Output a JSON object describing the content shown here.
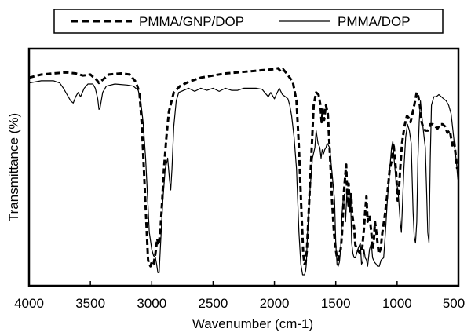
{
  "chart_data": {
    "type": "line",
    "xlabel": "Wavenumber (cm-1)",
    "ylabel": "Transmittance (%)",
    "xlim": [
      4000,
      500
    ],
    "x_reversed": true,
    "ylim": [
      0,
      100
    ],
    "y_ticks_shown": false,
    "grid": false,
    "legend_position": "top-center",
    "x_ticks": [
      4000,
      3500,
      3000,
      2500,
      2000,
      1500,
      1000,
      500
    ],
    "x_tick_labels": [
      "4000",
      "3500",
      "3000",
      "2500",
      "2000",
      "1500",
      "1000",
      "500"
    ],
    "series": [
      {
        "name": "PMMA/GNP/DOP",
        "style": "dashed",
        "color": "#000000",
        "points": [
          [
            4000,
            93
          ],
          [
            3900,
            94.5
          ],
          [
            3800,
            95
          ],
          [
            3700,
            95.5
          ],
          [
            3620,
            95
          ],
          [
            3560,
            94
          ],
          [
            3500,
            94.5
          ],
          [
            3450,
            92
          ],
          [
            3430,
            90.5
          ],
          [
            3400,
            92
          ],
          [
            3350,
            94.5
          ],
          [
            3250,
            95
          ],
          [
            3180,
            94.5
          ],
          [
            3130,
            91
          ],
          [
            3100,
            86
          ],
          [
            3080,
            70
          ],
          [
            3060,
            45
          ],
          [
            3040,
            20
          ],
          [
            3030,
            7
          ],
          [
            3020,
            5
          ],
          [
            3010,
            4
          ],
          [
            3000,
            6
          ],
          [
            2985,
            5
          ],
          [
            2970,
            10
          ],
          [
            2955,
            17
          ],
          [
            2945,
            14
          ],
          [
            2930,
            20
          ],
          [
            2915,
            35
          ],
          [
            2900,
            50
          ],
          [
            2880,
            65
          ],
          [
            2860,
            77
          ],
          [
            2820,
            86
          ],
          [
            2770,
            89
          ],
          [
            2700,
            91
          ],
          [
            2600,
            93
          ],
          [
            2500,
            94
          ],
          [
            2400,
            95
          ],
          [
            2300,
            95.5
          ],
          [
            2200,
            96
          ],
          [
            2100,
            96.5
          ],
          [
            2000,
            97
          ],
          [
            1970,
            97.5
          ],
          [
            1950,
            96
          ],
          [
            1930,
            97
          ],
          [
            1900,
            95
          ],
          [
            1850,
            91
          ],
          [
            1820,
            82
          ],
          [
            1800,
            60
          ],
          [
            1780,
            30
          ],
          [
            1765,
            10
          ],
          [
            1755,
            5
          ],
          [
            1745,
            6
          ],
          [
            1735,
            12
          ],
          [
            1720,
            30
          ],
          [
            1700,
            55
          ],
          [
            1680,
            80
          ],
          [
            1660,
            86
          ],
          [
            1640,
            85
          ],
          [
            1625,
            80
          ],
          [
            1615,
            72
          ],
          [
            1605,
            78
          ],
          [
            1595,
            73
          ],
          [
            1580,
            80
          ],
          [
            1565,
            76
          ],
          [
            1550,
            60
          ],
          [
            1530,
            35
          ],
          [
            1515,
            20
          ],
          [
            1500,
            12
          ],
          [
            1490,
            8
          ],
          [
            1480,
            7
          ],
          [
            1470,
            10
          ],
          [
            1460,
            12
          ],
          [
            1450,
            18
          ],
          [
            1440,
            30
          ],
          [
            1435,
            38
          ],
          [
            1425,
            45
          ],
          [
            1415,
            52
          ],
          [
            1405,
            35
          ],
          [
            1395,
            43
          ],
          [
            1385,
            30
          ],
          [
            1375,
            38
          ],
          [
            1365,
            28
          ],
          [
            1350,
            22
          ],
          [
            1340,
            14
          ],
          [
            1325,
            12
          ],
          [
            1300,
            10
          ],
          [
            1285,
            12
          ],
          [
            1270,
            22
          ],
          [
            1260,
            30
          ],
          [
            1250,
            37
          ],
          [
            1240,
            25
          ],
          [
            1225,
            28
          ],
          [
            1210,
            20
          ],
          [
            1200,
            12
          ],
          [
            1190,
            16
          ],
          [
            1180,
            25
          ],
          [
            1165,
            18
          ],
          [
            1150,
            10
          ],
          [
            1135,
            12
          ],
          [
            1120,
            20
          ],
          [
            1100,
            28
          ],
          [
            1080,
            38
          ],
          [
            1060,
            50
          ],
          [
            1040,
            55
          ],
          [
            1030,
            62
          ],
          [
            1010,
            50
          ],
          [
            995,
            35
          ],
          [
            985,
            40
          ],
          [
            975,
            50
          ],
          [
            960,
            62
          ],
          [
            940,
            70
          ],
          [
            920,
            75
          ],
          [
            905,
            74
          ],
          [
            890,
            72
          ],
          [
            875,
            76
          ],
          [
            860,
            80
          ],
          [
            840,
            86
          ],
          [
            830,
            85
          ],
          [
            815,
            80
          ],
          [
            800,
            72
          ],
          [
            790,
            70
          ],
          [
            770,
            68
          ],
          [
            750,
            68
          ],
          [
            730,
            71
          ],
          [
            710,
            71
          ],
          [
            690,
            70
          ],
          [
            670,
            69
          ],
          [
            650,
            71
          ],
          [
            630,
            71
          ],
          [
            610,
            70
          ],
          [
            590,
            67
          ],
          [
            570,
            68
          ],
          [
            550,
            61
          ],
          [
            535,
            63
          ],
          [
            520,
            55
          ],
          [
            510,
            50
          ]
        ]
      },
      {
        "name": "PMMA/DOP",
        "style": "solid",
        "color": "#000000",
        "points": [
          [
            4000,
            90.5
          ],
          [
            3900,
            91.5
          ],
          [
            3800,
            91.5
          ],
          [
            3750,
            90.5
          ],
          [
            3720,
            88
          ],
          [
            3690,
            85
          ],
          [
            3660,
            82
          ],
          [
            3640,
            81
          ],
          [
            3620,
            84
          ],
          [
            3600,
            86
          ],
          [
            3580,
            84
          ],
          [
            3550,
            88
          ],
          [
            3520,
            90
          ],
          [
            3480,
            90
          ],
          [
            3460,
            88
          ],
          [
            3440,
            83
          ],
          [
            3430,
            78
          ],
          [
            3420,
            79
          ],
          [
            3400,
            86
          ],
          [
            3370,
            89
          ],
          [
            3300,
            90
          ],
          [
            3200,
            89.5
          ],
          [
            3150,
            89
          ],
          [
            3110,
            87
          ],
          [
            3090,
            82
          ],
          [
            3070,
            72
          ],
          [
            3050,
            55
          ],
          [
            3035,
            38
          ],
          [
            3020,
            20
          ],
          [
            3000,
            12
          ],
          [
            2985,
            9
          ],
          [
            2970,
            8
          ],
          [
            2960,
            5
          ],
          [
            2950,
            1
          ],
          [
            2940,
            1
          ],
          [
            2930,
            12
          ],
          [
            2910,
            35
          ],
          [
            2890,
            50
          ],
          [
            2870,
            55
          ],
          [
            2855,
            45
          ],
          [
            2845,
            40
          ],
          [
            2835,
            50
          ],
          [
            2820,
            70
          ],
          [
            2800,
            82
          ],
          [
            2780,
            86
          ],
          [
            2700,
            88
          ],
          [
            2650,
            86.5
          ],
          [
            2600,
            88
          ],
          [
            2550,
            87
          ],
          [
            2500,
            88
          ],
          [
            2450,
            86.5
          ],
          [
            2400,
            88
          ],
          [
            2350,
            87
          ],
          [
            2300,
            87
          ],
          [
            2250,
            88
          ],
          [
            2200,
            88
          ],
          [
            2150,
            88
          ],
          [
            2100,
            87.5
          ],
          [
            2080,
            86
          ],
          [
            2050,
            84
          ],
          [
            2030,
            86
          ],
          [
            2010,
            84
          ],
          [
            2000,
            83
          ],
          [
            1985,
            85
          ],
          [
            1960,
            88
          ],
          [
            1935,
            85
          ],
          [
            1910,
            84
          ],
          [
            1890,
            83
          ],
          [
            1875,
            80
          ],
          [
            1860,
            75
          ],
          [
            1840,
            65
          ],
          [
            1820,
            50
          ],
          [
            1800,
            20
          ],
          [
            1785,
            5
          ],
          [
            1770,
            0
          ],
          [
            1755,
            0
          ],
          [
            1745,
            2
          ],
          [
            1740,
            5
          ],
          [
            1730,
            20
          ],
          [
            1710,
            40
          ],
          [
            1690,
            55
          ],
          [
            1670,
            60
          ],
          [
            1660,
            68
          ],
          [
            1645,
            62
          ],
          [
            1630,
            60
          ],
          [
            1620,
            55
          ],
          [
            1610,
            59
          ],
          [
            1600,
            57
          ],
          [
            1590,
            59
          ],
          [
            1580,
            60
          ],
          [
            1570,
            62
          ],
          [
            1550,
            60
          ],
          [
            1530,
            48
          ],
          [
            1510,
            35
          ],
          [
            1500,
            15
          ],
          [
            1490,
            5
          ],
          [
            1480,
            4
          ],
          [
            1470,
            6
          ],
          [
            1460,
            12
          ],
          [
            1450,
            28
          ],
          [
            1440,
            35
          ],
          [
            1430,
            38
          ],
          [
            1420,
            25
          ],
          [
            1410,
            38
          ],
          [
            1400,
            32
          ],
          [
            1390,
            40
          ],
          [
            1380,
            37
          ],
          [
            1370,
            15
          ],
          [
            1360,
            10
          ],
          [
            1350,
            8
          ],
          [
            1340,
            8
          ],
          [
            1320,
            12
          ],
          [
            1300,
            15
          ],
          [
            1290,
            5
          ],
          [
            1280,
            6
          ],
          [
            1270,
            12
          ],
          [
            1260,
            8
          ],
          [
            1250,
            7
          ],
          [
            1240,
            4
          ],
          [
            1225,
            12
          ],
          [
            1210,
            15
          ],
          [
            1200,
            8
          ],
          [
            1185,
            6
          ],
          [
            1170,
            5
          ],
          [
            1160,
            4
          ],
          [
            1145,
            4
          ],
          [
            1130,
            7
          ],
          [
            1110,
            8
          ],
          [
            1095,
            20
          ],
          [
            1080,
            35
          ],
          [
            1060,
            50
          ],
          [
            1045,
            60
          ],
          [
            1035,
            63
          ],
          [
            1025,
            55
          ],
          [
            1010,
            45
          ],
          [
            1000,
            42
          ],
          [
            990,
            38
          ],
          [
            975,
            25
          ],
          [
            965,
            20
          ],
          [
            955,
            35
          ],
          [
            945,
            50
          ],
          [
            930,
            65
          ],
          [
            915,
            71
          ],
          [
            900,
            68
          ],
          [
            885,
            62
          ],
          [
            870,
            30
          ],
          [
            860,
            18
          ],
          [
            850,
            15
          ],
          [
            840,
            25
          ],
          [
            830,
            55
          ],
          [
            820,
            72
          ],
          [
            810,
            82
          ],
          [
            800,
            76
          ],
          [
            790,
            70
          ],
          [
            780,
            65
          ],
          [
            770,
            60
          ],
          [
            760,
            40
          ],
          [
            750,
            20
          ],
          [
            740,
            15
          ],
          [
            730,
            55
          ],
          [
            720,
            80
          ],
          [
            700,
            84
          ],
          [
            680,
            84
          ],
          [
            660,
            85
          ],
          [
            640,
            84
          ],
          [
            620,
            83
          ],
          [
            600,
            82
          ],
          [
            580,
            80
          ],
          [
            560,
            76
          ],
          [
            545,
            68
          ],
          [
            530,
            60
          ],
          [
            515,
            52
          ],
          [
            505,
            45
          ]
        ]
      }
    ]
  }
}
